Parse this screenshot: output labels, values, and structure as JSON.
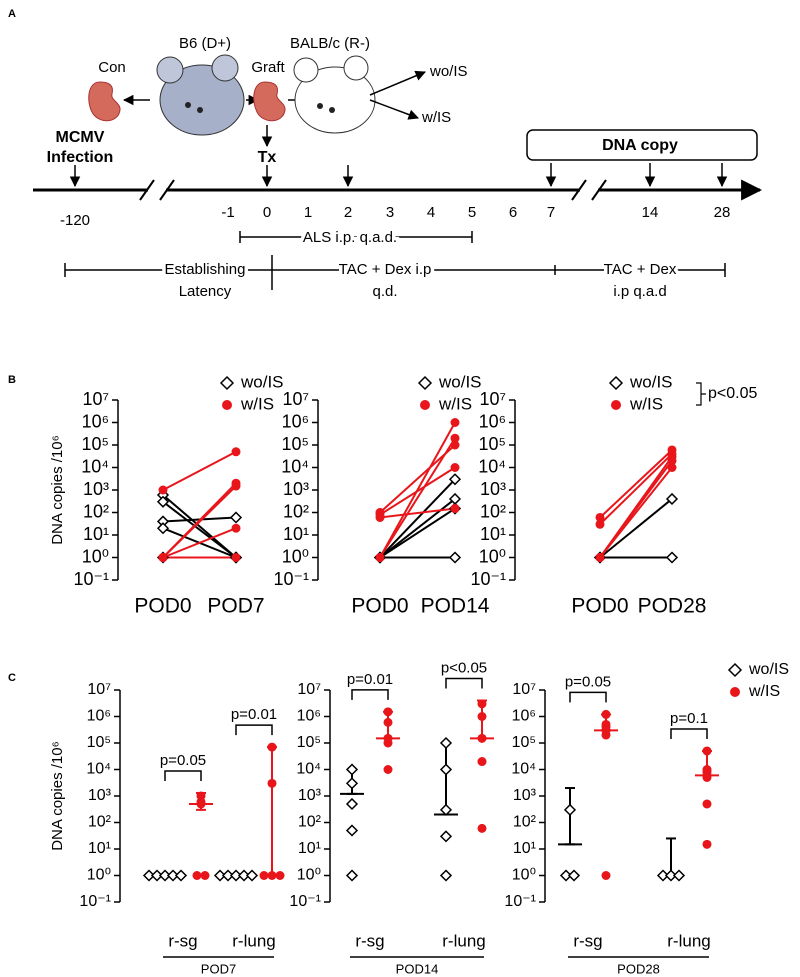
{
  "panel_labels": [
    "A",
    "B",
    "C"
  ],
  "diagram": {
    "con": "Con",
    "donor": "B6 (D+)",
    "graft": "Graft",
    "recipient": "BALB/c (R-)",
    "wo": "wo/IS",
    "w": "w/IS",
    "infection": [
      "MCMV",
      "Infection"
    ],
    "tx": "Tx",
    "dna": "DNA copy",
    "timeline": [
      "-120",
      "-1",
      "0",
      "1",
      "2",
      "3",
      "4",
      "5",
      "6",
      "7",
      "14",
      "28"
    ],
    "als": "ALS i.p. q.a.d.",
    "latency": [
      "Establishing",
      "Latency"
    ],
    "tac_qd": [
      "TAC + Dex i.p",
      "q.d."
    ],
    "tac_qad": [
      "TAC + Dex",
      "i.p q.a.d"
    ]
  },
  "chart_data": [
    {
      "type": "line",
      "ylabel": "DNA copies /10⁶",
      "categories": [
        "POD0",
        "POD7"
      ],
      "log": true,
      "legend": "upper right",
      "ylim": [
        0.1,
        10000000
      ],
      "yticks": [
        {
          "value": 0.1,
          "label": "10⁻¹"
        },
        {
          "value": 1,
          "label": "10⁰"
        },
        {
          "value": 10,
          "label": "10¹"
        },
        {
          "value": 100,
          "label": "10²"
        },
        {
          "value": 1000,
          "label": "10³"
        },
        {
          "value": 10000,
          "label": "10⁴"
        },
        {
          "value": 100000,
          "label": "10⁵"
        },
        {
          "value": 1000000,
          "label": "10⁶"
        },
        {
          "value": 10000000,
          "label": "10⁷"
        }
      ],
      "series": [
        {
          "name": "wo/IS",
          "color": "#000000",
          "marker": "diamond",
          "values": [
            [
              600,
              1
            ],
            [
              300,
              1
            ],
            [
              40,
              60
            ],
            [
              20,
              1
            ],
            [
              1,
              1
            ]
          ]
        },
        {
          "name": "w/IS",
          "color": "#e8161b",
          "marker": "circle",
          "values": [
            [
              1000,
              50000
            ],
            [
              1,
              2000
            ],
            [
              1,
              1500
            ],
            [
              1,
              20
            ],
            [
              1,
              1
            ]
          ]
        }
      ]
    },
    {
      "type": "line",
      "categories": [
        "POD0",
        "POD14"
      ],
      "log": true,
      "legend": "upper right",
      "ylim": [
        0.1,
        10000000
      ],
      "yticks": [
        {
          "value": 0.1,
          "label": "10⁻¹"
        },
        {
          "value": 1,
          "label": "10⁰"
        },
        {
          "value": 10,
          "label": "10¹"
        },
        {
          "value": 100,
          "label": "10²"
        },
        {
          "value": 1000,
          "label": "10³"
        },
        {
          "value": 10000,
          "label": "10⁴"
        },
        {
          "value": 100000,
          "label": "10⁵"
        },
        {
          "value": 1000000,
          "label": "10⁶"
        },
        {
          "value": 10000000,
          "label": "10⁷"
        }
      ],
      "series": [
        {
          "name": "wo/IS",
          "color": "#000000",
          "marker": "diamond",
          "values": [
            [
              1,
              3000
            ],
            [
              1,
              400
            ],
            [
              1,
              150
            ],
            [
              1,
              1
            ]
          ]
        },
        {
          "name": "w/IS",
          "color": "#e8161b",
          "marker": "circle",
          "values": [
            [
              1,
              1000000
            ],
            [
              1,
              200000
            ],
            [
              100,
              100000
            ],
            [
              80,
              10000
            ],
            [
              60,
              150
            ]
          ]
        }
      ]
    },
    {
      "type": "line",
      "categories": [
        "POD0",
        "POD28"
      ],
      "log": true,
      "legend": "upper right",
      "annotation": "p<0.05",
      "ylim": [
        0.1,
        10000000
      ],
      "yticks": [
        {
          "value": 0.1,
          "label": "10⁻¹"
        },
        {
          "value": 1,
          "label": "10⁰"
        },
        {
          "value": 10,
          "label": "10¹"
        },
        {
          "value": 100,
          "label": "10²"
        },
        {
          "value": 1000,
          "label": "10³"
        },
        {
          "value": 10000,
          "label": "10⁴"
        },
        {
          "value": 100000,
          "label": "10⁵"
        },
        {
          "value": 1000000,
          "label": "10⁶"
        },
        {
          "value": 10000000,
          "label": "10⁷"
        }
      ],
      "series": [
        {
          "name": "wo/IS",
          "color": "#000000",
          "marker": "diamond",
          "values": [
            [
              1,
              400
            ],
            [
              1,
              1
            ]
          ]
        },
        {
          "name": "w/IS",
          "color": "#e8161b",
          "marker": "circle",
          "values": [
            [
              60,
              60000
            ],
            [
              30,
              40000
            ],
            [
              1,
              30000
            ],
            [
              1,
              20000
            ],
            [
              1,
              10000
            ]
          ]
        }
      ]
    },
    {
      "type": "dot",
      "ylabel": "DNA copies /10⁶",
      "categories": [
        "r-sg",
        "r-lung"
      ],
      "group_label": "POD7",
      "p_values": [
        "p=0.05",
        "p=0.01"
      ],
      "log": true,
      "ylim": [
        0.1,
        10000000
      ],
      "yticks": [
        {
          "value": 0.1,
          "label": "10⁻¹"
        },
        {
          "value": 1,
          "label": "10⁰"
        },
        {
          "value": 10,
          "label": "10¹"
        },
        {
          "value": 100,
          "label": "10²"
        },
        {
          "value": 1000,
          "label": "10³"
        },
        {
          "value": 10000,
          "label": "10⁴"
        },
        {
          "value": 100000,
          "label": "10⁵"
        },
        {
          "value": 1000000,
          "label": "10⁶"
        },
        {
          "value": 10000000,
          "label": "10⁷"
        }
      ],
      "series": [
        {
          "name": "wo/IS",
          "color": "#000000",
          "marker": "diamond",
          "values": [
            [
              1,
              1,
              1,
              1,
              1
            ],
            [
              1,
              1,
              1,
              1,
              1
            ]
          ],
          "median": [
            1,
            1
          ],
          "low": [
            1,
            1
          ],
          "high": [
            1,
            1
          ]
        },
        {
          "name": "w/IS",
          "color": "#e8161b",
          "marker": "circle",
          "values": [
            [
              1000,
              600,
              500,
              1,
              1
            ],
            [
              70000,
              3000,
              1,
              1,
              1
            ]
          ],
          "median": [
            500,
            1
          ],
          "low": [
            300,
            1
          ],
          "high": [
            1300,
            70000
          ]
        }
      ]
    },
    {
      "type": "dot",
      "categories": [
        "r-sg",
        "r-lung"
      ],
      "group_label": "POD14",
      "p_values": [
        "p=0.01",
        "p<0.05"
      ],
      "log": true,
      "ylim": [
        0.1,
        10000000
      ],
      "yticks": [
        {
          "value": 0.1,
          "label": "10⁻¹"
        },
        {
          "value": 1,
          "label": "10⁰"
        },
        {
          "value": 10,
          "label": "10¹"
        },
        {
          "value": 100,
          "label": "10²"
        },
        {
          "value": 1000,
          "label": "10³"
        },
        {
          "value": 10000,
          "label": "10⁴"
        },
        {
          "value": 100000,
          "label": "10⁵"
        },
        {
          "value": 1000000,
          "label": "10⁶"
        },
        {
          "value": 10000000,
          "label": "10⁷"
        }
      ],
      "series": [
        {
          "name": "wo/IS",
          "color": "#000000",
          "marker": "diamond",
          "values": [
            [
              10000,
              3000,
              500,
              50,
              1
            ],
            [
              100000,
              10000,
              300,
              30,
              1
            ]
          ],
          "median": [
            1200,
            200
          ],
          "low": [
            1200,
            200
          ],
          "high": [
            10000,
            100000
          ]
        },
        {
          "name": "w/IS",
          "color": "#e8161b",
          "marker": "circle",
          "values": [
            [
              1500000,
              600000,
              150000,
              100000,
              10000
            ],
            [
              3000000,
              1000000,
              150000,
              20000,
              60
            ]
          ],
          "median": [
            150000,
            150000
          ],
          "low": [
            150000,
            150000
          ],
          "high": [
            1500000,
            4000000
          ]
        }
      ]
    },
    {
      "type": "dot",
      "categories": [
        "r-sg",
        "r-lung"
      ],
      "group_label": "POD28",
      "p_values": [
        "p=0.05",
        "p=0.1"
      ],
      "log": true,
      "legend": "outside right",
      "ylim": [
        0.1,
        10000000
      ],
      "yticks": [
        {
          "value": 0.1,
          "label": "10⁻¹"
        },
        {
          "value": 1,
          "label": "10⁰"
        },
        {
          "value": 10,
          "label": "10¹"
        },
        {
          "value": 100,
          "label": "10²"
        },
        {
          "value": 1000,
          "label": "10³"
        },
        {
          "value": 10000,
          "label": "10⁴"
        },
        {
          "value": 100000,
          "label": "10⁵"
        },
        {
          "value": 1000000,
          "label": "10⁶"
        },
        {
          "value": 10000000,
          "label": "10⁷"
        }
      ],
      "series": [
        {
          "name": "wo/IS",
          "color": "#000000",
          "marker": "diamond",
          "values": [
            [
              300,
              1,
              1
            ],
            [
              1,
              1,
              1
            ]
          ],
          "median": [
            15,
            1
          ],
          "low": [
            15,
            1
          ],
          "high": [
            2000,
            25
          ]
        },
        {
          "name": "w/IS",
          "color": "#e8161b",
          "marker": "circle",
          "values": [
            [
              1200000,
              500000,
              400000,
              300000,
              200000,
              1
            ],
            [
              50000,
              10000,
              8000,
              5000,
              500,
              15
            ]
          ],
          "median": [
            300000,
            6000
          ],
          "low": [
            300000,
            6000
          ],
          "high": [
            1200000,
            50000
          ]
        }
      ]
    }
  ]
}
